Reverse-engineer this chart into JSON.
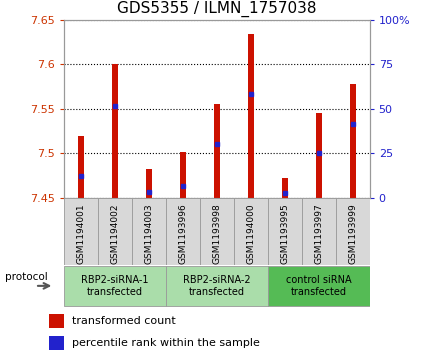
{
  "title": "GDS5355 / ILMN_1757038",
  "samples": [
    "GSM1194001",
    "GSM1194002",
    "GSM1194003",
    "GSM1193996",
    "GSM1193998",
    "GSM1194000",
    "GSM1193995",
    "GSM1193997",
    "GSM1193999"
  ],
  "red_values": [
    7.519,
    7.601,
    7.482,
    7.502,
    7.556,
    7.634,
    7.472,
    7.545,
    7.578
  ],
  "blue_values": [
    7.475,
    7.553,
    7.457,
    7.463,
    7.51,
    7.567,
    7.455,
    7.5,
    7.533
  ],
  "ymin": 7.45,
  "ymax": 7.65,
  "y_ticks": [
    7.45,
    7.5,
    7.55,
    7.6,
    7.65
  ],
  "y2_ticks": [
    0,
    25,
    50,
    75,
    100
  ],
  "groups": [
    {
      "label": "RBP2-siRNA-1\ntransfected",
      "start": 0,
      "end": 3,
      "color": "#aaddaa"
    },
    {
      "label": "RBP2-siRNA-2\ntransfected",
      "start": 3,
      "end": 6,
      "color": "#aaddaa"
    },
    {
      "label": "control siRNA\ntransfected",
      "start": 6,
      "end": 9,
      "color": "#55bb55"
    }
  ],
  "bar_color": "#cc1100",
  "dot_color": "#2222cc",
  "sample_bg": "#d8d8d8",
  "plot_bg": "#ffffff",
  "title_fontsize": 11,
  "bar_width": 0.18
}
